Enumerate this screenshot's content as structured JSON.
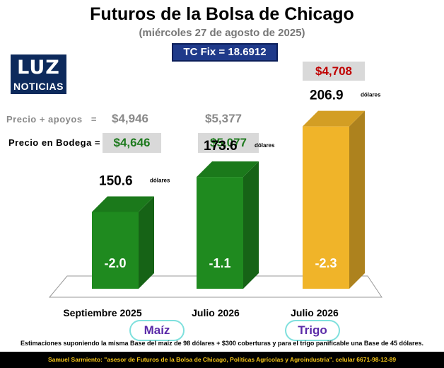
{
  "header": {
    "title": "Futuros de la Bolsa de Chicago",
    "subtitle": "(miércoles 27 de agosto de 2025)",
    "tc_fix": "TC Fix = 18.6912"
  },
  "logo": {
    "top": "LUZ",
    "bottom": "NOTICIAS"
  },
  "rows": {
    "apoyos_label": "Precio + apoyos   =",
    "bodega_label": "Precio en Bodega =",
    "apoyos_values": [
      "$4,946",
      "$5,377"
    ],
    "bodega_values": [
      "$4,646",
      "$5,077"
    ],
    "trigo_price": "$4,708"
  },
  "groups": {
    "maiz": "Maíz",
    "trigo": "Trigo"
  },
  "footnote": "Estimaciones suponiendo la misma Base del maíz de 98 dólares + $300 coberturas y para el trigo panificable una Base de 45 dólares.",
  "credit": "Samuel Sarmiento: \"asesor de Futuros de la Bolsa de Chicago, Políticas Agrícolas y Agroindustria\". celular 6671-98-12-89",
  "colors": {
    "green": "#1f8a1f",
    "gold": "#f0b429",
    "accent_red": "#c00000"
  },
  "chart_data": {
    "type": "bar",
    "title": "Futuros de la Bolsa de Chicago",
    "categories": [
      "Septiembre 2025",
      "Julio 2026",
      "Julio 2026"
    ],
    "values": [
      150.6,
      173.6,
      206.9
    ],
    "value_unit": "dólares",
    "value_labels": [
      "150.6",
      "173.6",
      "206.9"
    ],
    "bar_labels": [
      "-2.0",
      "-1.1",
      "-2.3"
    ],
    "bar_colors": [
      "#1f8a1f",
      "#1f8a1f",
      "#f0b429"
    ],
    "groups": [
      {
        "name": "Maíz",
        "categories": [
          0,
          1
        ]
      },
      {
        "name": "Trigo",
        "categories": [
          2
        ]
      }
    ],
    "ylim": [
      100,
      210
    ],
    "xlabel": "",
    "ylabel": ""
  }
}
